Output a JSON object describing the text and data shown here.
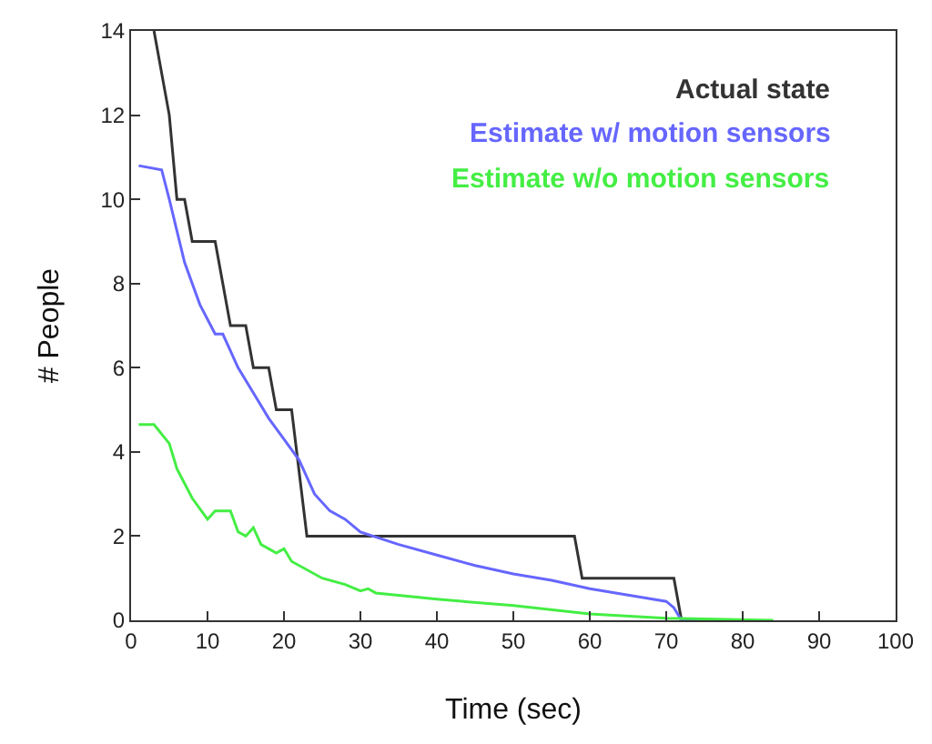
{
  "chart_data": {
    "type": "line",
    "xlabel": "Time (sec)",
    "ylabel": "# People",
    "xlim": [
      0,
      100
    ],
    "xticks": [
      0,
      10,
      20,
      30,
      40,
      50,
      60,
      70,
      80,
      90,
      100
    ],
    "ylim": [
      0,
      14
    ],
    "yticks": [
      0,
      2,
      4,
      6,
      8,
      10,
      12,
      14
    ],
    "legend": "top right",
    "series": [
      {
        "name": "Actual state",
        "color": "#333333",
        "x": [
          3,
          5,
          6,
          7,
          8,
          11,
          12,
          13,
          15,
          16,
          18,
          19,
          21,
          23,
          58,
          59,
          71,
          72,
          75
        ],
        "values": [
          14,
          12,
          10,
          10,
          9,
          9,
          8,
          7,
          7,
          6,
          6,
          5,
          5,
          2,
          2,
          1,
          1,
          0,
          0
        ]
      },
      {
        "name": "Estimate w/ motion sensors",
        "color": "#6666ff",
        "x": [
          1,
          4,
          5,
          7,
          9,
          11,
          12,
          14,
          16,
          18,
          20,
          22,
          24,
          26,
          28,
          30,
          35,
          40,
          45,
          50,
          55,
          60,
          65,
          70,
          71,
          72,
          75
        ],
        "values": [
          10.8,
          10.7,
          10,
          8.5,
          7.5,
          6.8,
          6.8,
          6,
          5.4,
          4.8,
          4.3,
          3.8,
          3,
          2.6,
          2.4,
          2.1,
          1.8,
          1.55,
          1.3,
          1.1,
          0.95,
          0.75,
          0.6,
          0.45,
          0.3,
          0,
          0
        ]
      },
      {
        "name": "Estimate w/o motion sensors",
        "color": "#44ee44",
        "x": [
          1,
          3,
          5,
          6,
          8,
          10,
          11,
          13,
          14,
          15,
          16,
          17,
          19,
          20,
          21,
          25,
          28,
          30,
          31,
          32,
          40,
          50,
          60,
          70,
          84
        ],
        "values": [
          4.65,
          4.65,
          4.2,
          3.6,
          2.9,
          2.4,
          2.6,
          2.6,
          2.1,
          2.0,
          2.2,
          1.8,
          1.6,
          1.7,
          1.4,
          1.0,
          0.85,
          0.7,
          0.75,
          0.65,
          0.5,
          0.35,
          0.15,
          0.05,
          0
        ]
      }
    ]
  }
}
